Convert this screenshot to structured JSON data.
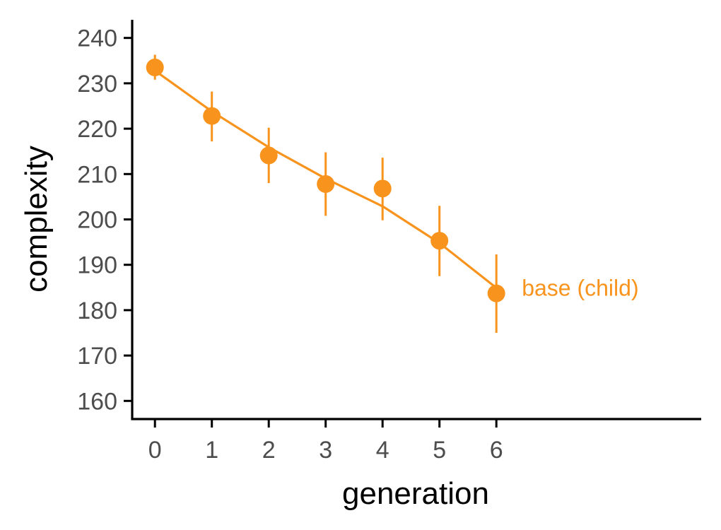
{
  "chart_data": {
    "type": "line",
    "xlabel": "generation",
    "ylabel": "complexity",
    "xlim": [
      -0.4,
      9.6
    ],
    "ylim": [
      156,
      244
    ],
    "x_ticks": [
      0,
      1,
      2,
      3,
      4,
      5,
      6
    ],
    "y_ticks": [
      160,
      170,
      180,
      190,
      200,
      210,
      220,
      230,
      240
    ],
    "grid": false,
    "legend": "none",
    "series": [
      {
        "name": "base (child)",
        "color": "#F8941D",
        "x": [
          0,
          1,
          2,
          3,
          4,
          5,
          6
        ],
        "y": [
          233.5,
          222.8,
          214.1,
          207.8,
          206.8,
          195.3,
          183.7
        ],
        "y_low": [
          230.8,
          217.2,
          208.0,
          200.8,
          199.8,
          187.5,
          175.0
        ],
        "y_high": [
          236.3,
          228.2,
          220.2,
          214.8,
          213.6,
          203.0,
          192.3
        ],
        "fit": [
          232.8,
          223.8,
          215.9,
          209.0,
          202.9,
          194.8,
          184.9
        ]
      }
    ]
  }
}
